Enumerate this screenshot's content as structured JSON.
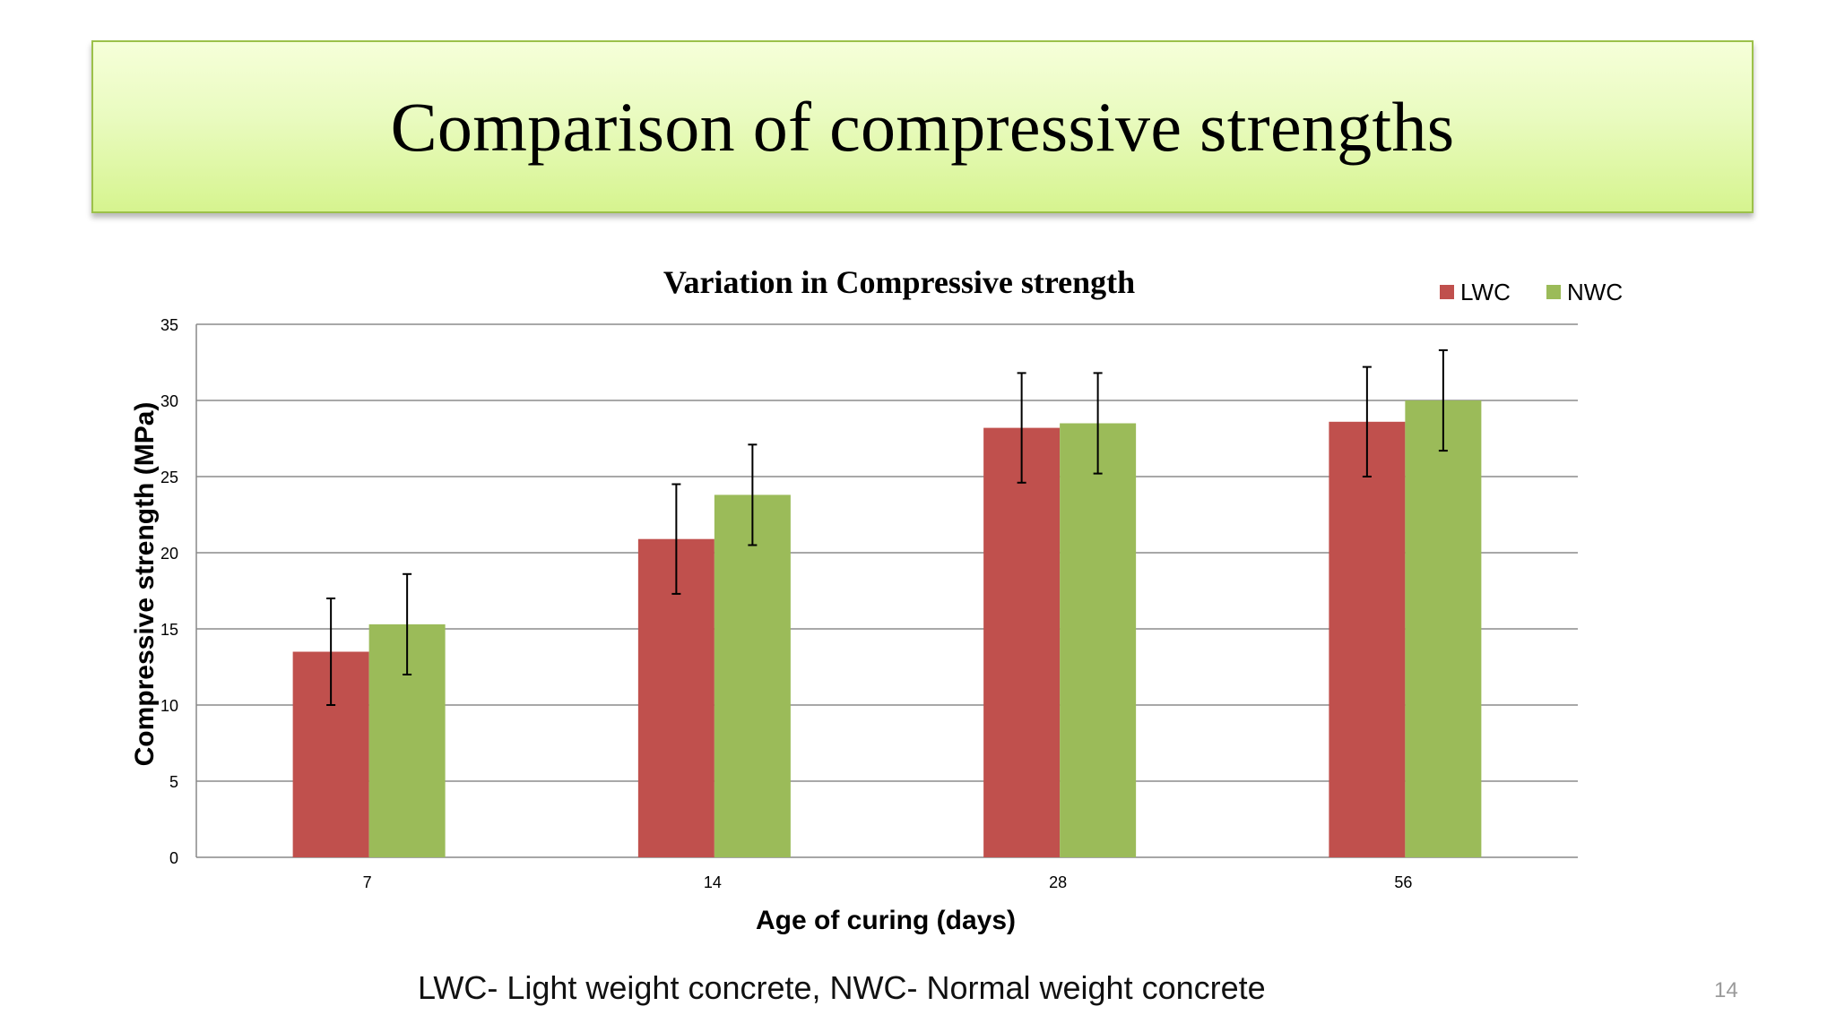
{
  "slide": {
    "title": "Comparison of compressive strengths",
    "footnote": "LWC- Light weight concrete, NWC- Normal weight concrete",
    "page_number": "14"
  },
  "chart_data": {
    "type": "bar",
    "title": "Variation in Compressive strength",
    "xlabel": "Age of curing (days)",
    "ylabel": "Compressive strength (MPa)",
    "categories": [
      "7",
      "14",
      "28",
      "56"
    ],
    "ylim": [
      0,
      35
    ],
    "yticks": [
      0,
      5,
      10,
      15,
      20,
      25,
      30,
      35
    ],
    "grid": true,
    "legend_position": "top-right",
    "series": [
      {
        "name": "LWC",
        "color": "#c0504d",
        "values": [
          13.5,
          20.9,
          28.2,
          28.6
        ],
        "errors": [
          3.5,
          3.6,
          3.6,
          3.6
        ]
      },
      {
        "name": "NWC",
        "color": "#9bbb59",
        "values": [
          15.3,
          23.8,
          28.5,
          30.0
        ],
        "errors": [
          3.3,
          3.3,
          3.3,
          3.3
        ]
      }
    ]
  }
}
